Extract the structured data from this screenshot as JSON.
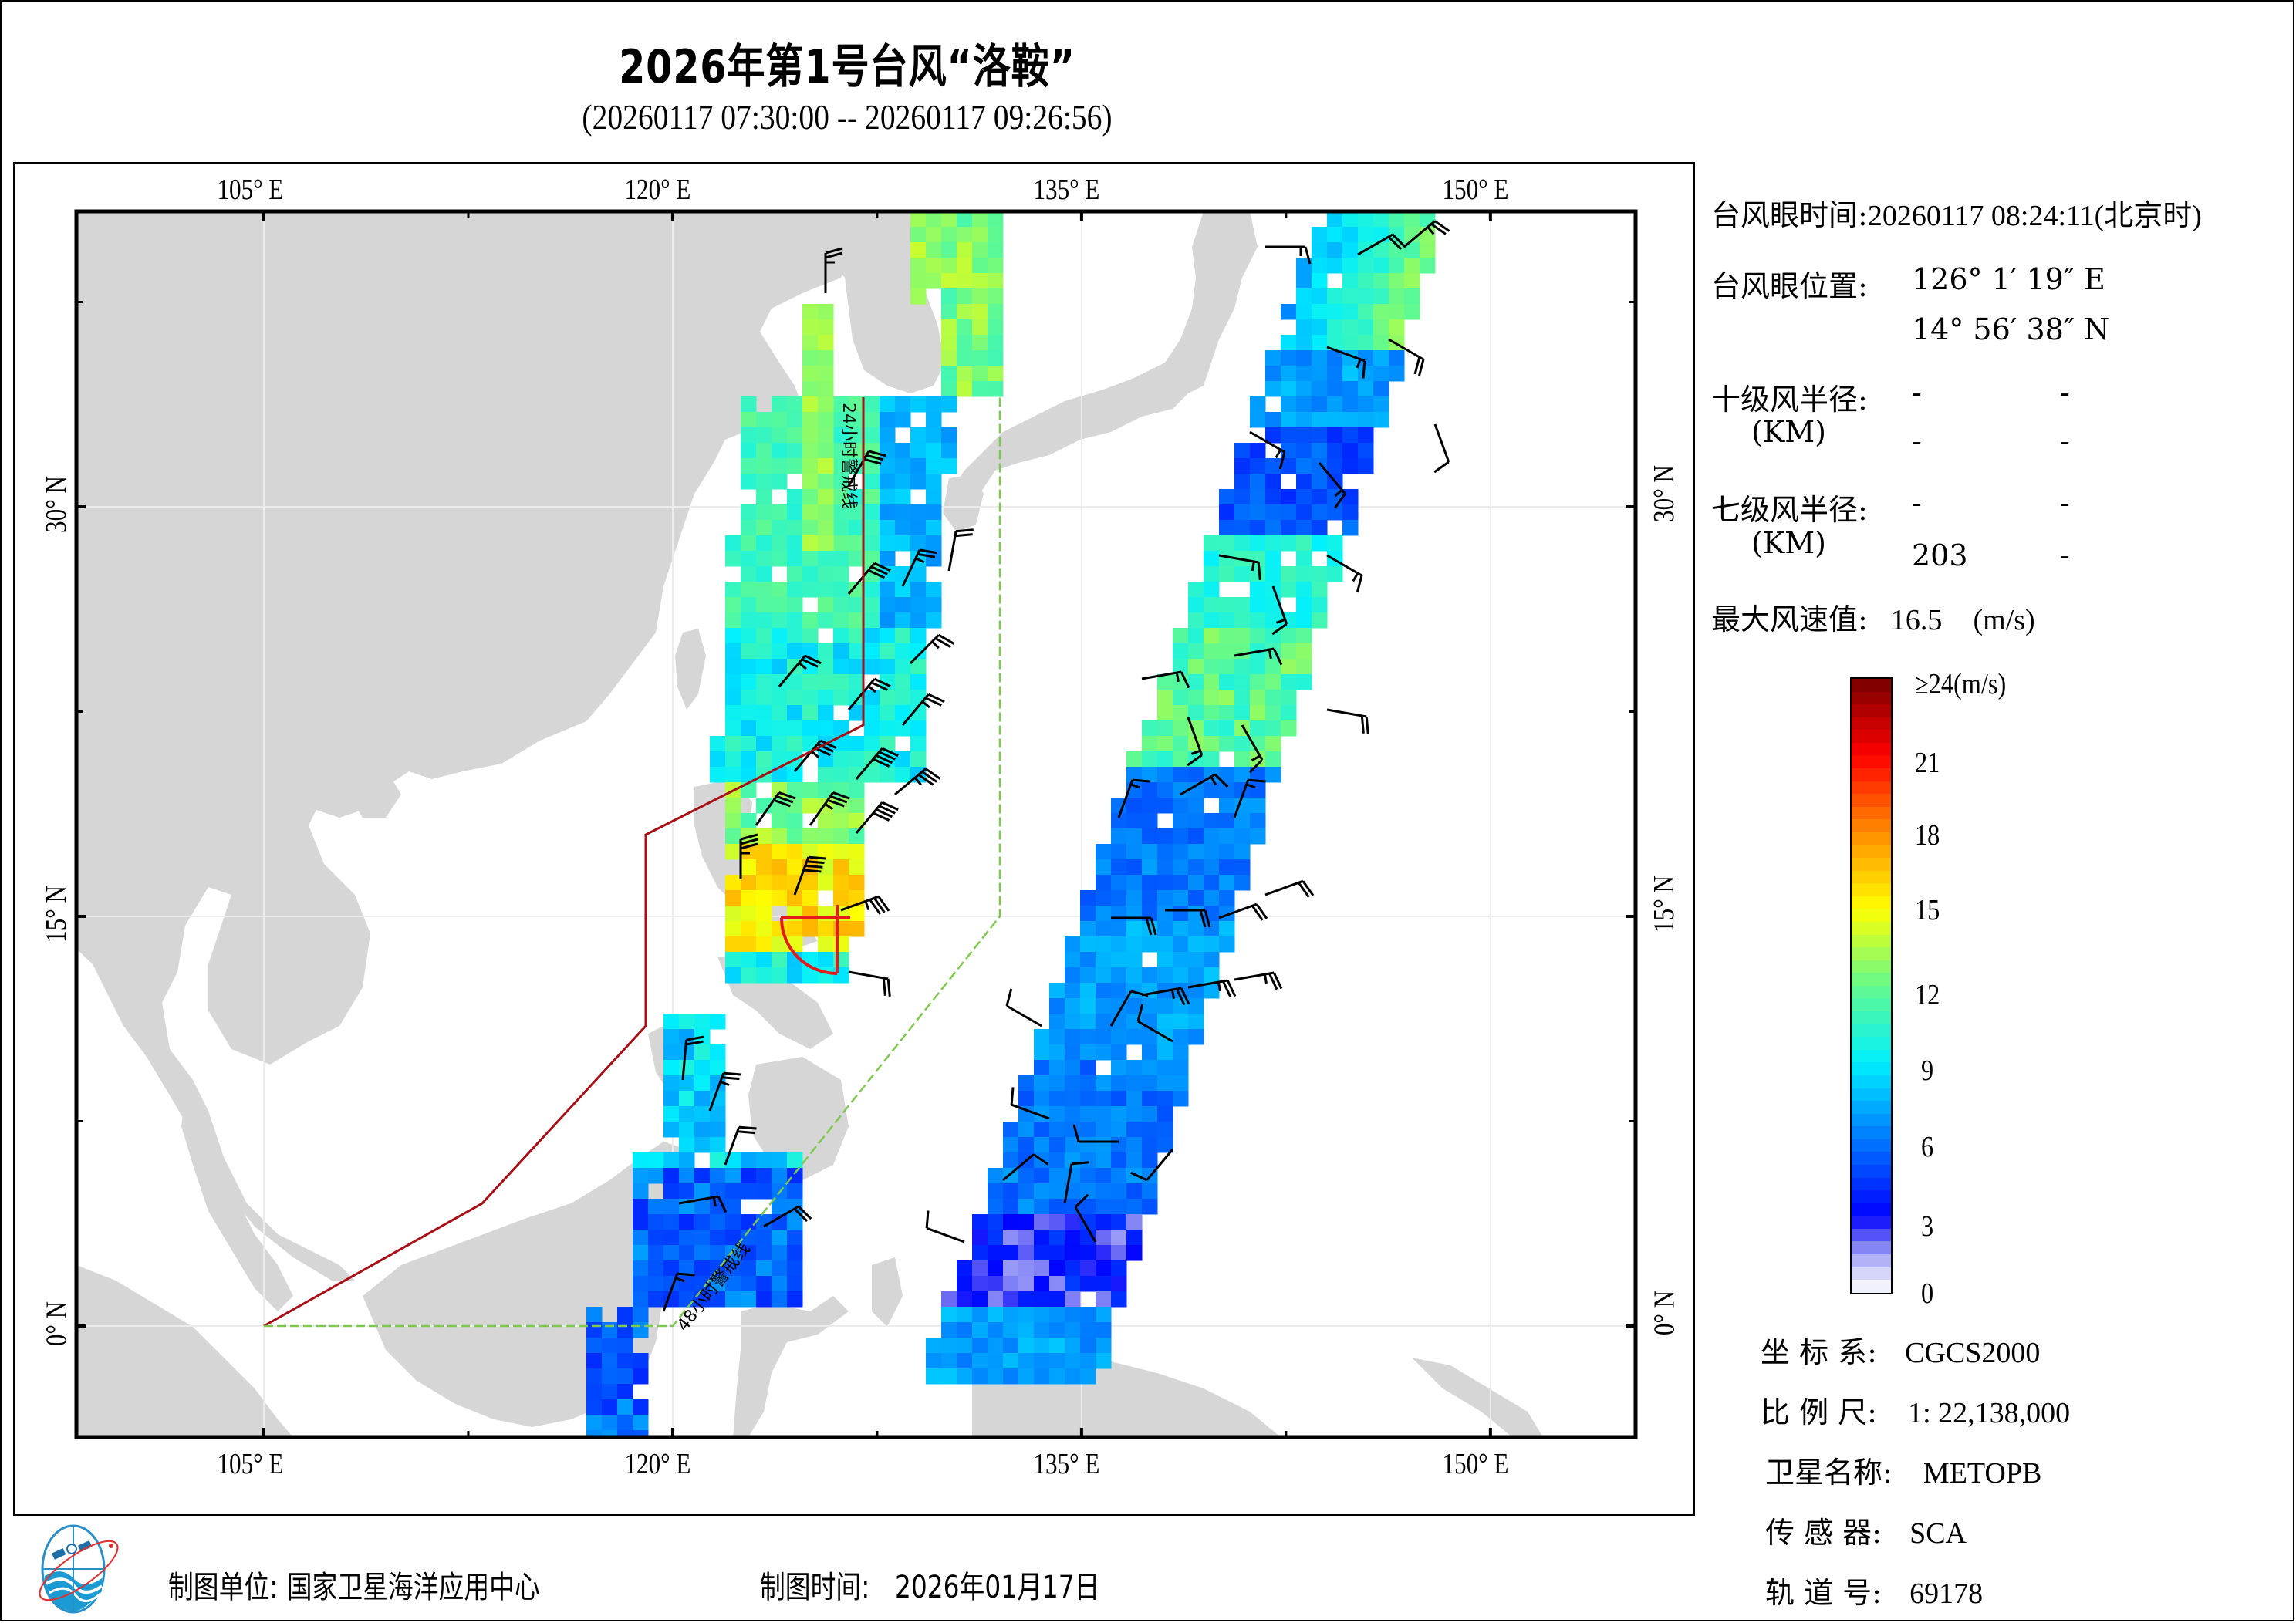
{
  "title": "2026年第1号台风“洛鞍”",
  "subtitle": "(20260117 07:30:00 -- 20260117 09:26:56)",
  "axes": {
    "top_lon_labels": [
      "105° E",
      "120° E",
      "135° E",
      "150° E"
    ],
    "bottom_lon_labels": [
      "105° E",
      "120° E",
      "135° E",
      "150° E"
    ],
    "left_lat_labels": [
      "30° N",
      "15° N",
      "0° N"
    ],
    "right_lat_labels": [
      "30° N",
      "15° N",
      "0° N"
    ],
    "lon_ticks": [
      105,
      120,
      135,
      150
    ],
    "lat_ticks": [
      30,
      15,
      0
    ],
    "extent": {
      "lon_min": 98.1,
      "lon_max": 155.3,
      "lat_min": -3.9,
      "lat_max": 40.8
    }
  },
  "map_annotations": {
    "warning_24h_label": "24小时警戒线",
    "warning_48h_label": "48小时警戒线",
    "warning_24h_color": "#a50f15",
    "warning_48h_color": "#7ec850",
    "land_color": "#d6d6d6",
    "typhoon_marker_color": "#e41a1c"
  },
  "typhoon_info": {
    "eye_time_label": "台风眼时间:",
    "eye_time_value": "20260117 08:24:11(北京时)",
    "eye_position_label": "台风眼位置:",
    "eye_lon": "126° 1′ 19″ E",
    "eye_lat": "14° 56′ 38″ N",
    "r10_label": "十级风半径:",
    "r10_unit": "(KM)",
    "r10_values": [
      "-",
      "-",
      "-",
      "-"
    ],
    "r7_label": "七级风半径:",
    "r7_unit": "(KM)",
    "r7_values": [
      "-",
      "-",
      "203",
      "-"
    ],
    "max_wind_label": "最大风速值:",
    "max_wind_value": "16.5",
    "max_wind_unit": "(m/s)"
  },
  "colorbar": {
    "top_label": "≥24(m/s)",
    "ticks": [
      "21",
      "18",
      "15",
      "12",
      "9",
      "6",
      "3",
      "0"
    ],
    "tick_values": [
      21,
      18,
      15,
      12,
      9,
      6,
      3,
      0
    ],
    "min": 0,
    "max": 24
  },
  "metadata": {
    "coord_label": "坐 标 系:",
    "coord_value": "CGCS2000",
    "scale_label": "比 例 尺:",
    "scale_value": "1: 22,138,000",
    "satellite_label": "卫星名称:",
    "satellite_value": "METOPB",
    "sensor_label": "传 感 器:",
    "sensor_value": "SCA",
    "orbit_label": "轨 道 号:",
    "orbit_value": "69178"
  },
  "footer": {
    "org_label": "制图单位:",
    "org_value": "国家卫星海洋应用中心",
    "date_label": "制图时间:",
    "date_value": "2026年01月17日"
  },
  "typhoon_eye": {
    "lon": 126.022,
    "lat": 14.944,
    "r7_km": 203,
    "max_wind_ms": 16.5
  }
}
